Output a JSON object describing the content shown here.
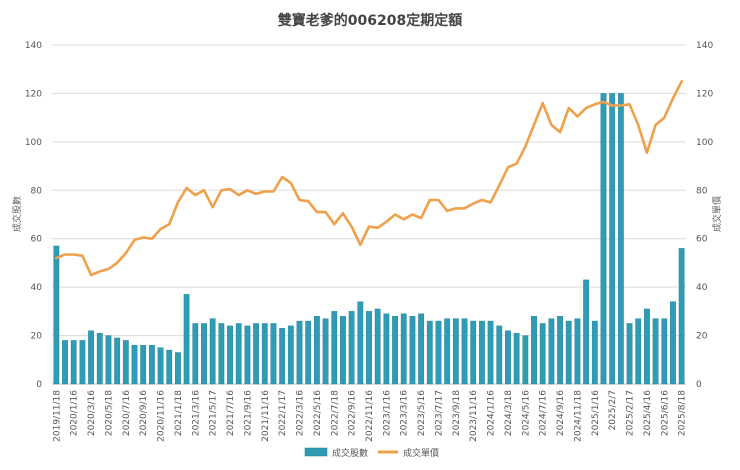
{
  "chart_data": {
    "type": "bar+line",
    "title": "雙寶老爹的006208定期定額",
    "ylabel_left": "成交股數",
    "ylabel_right": "成交單價",
    "ylim": [
      0,
      140
    ],
    "yticks": [
      0,
      20,
      40,
      60,
      80,
      100,
      120,
      140
    ],
    "grid": true,
    "legend_position": "bottom",
    "x_tick_labels": [
      "2019/11/18",
      "2020/1/16",
      "2020/3/16",
      "2020/5/18",
      "2020/7/16",
      "2020/9/16",
      "2020/11/16",
      "2021/1/18",
      "2021/3/16",
      "2021/5/17",
      "2021/7/16",
      "2021/9/16",
      "2021/11/16",
      "2022/1/17",
      "2022/3/16",
      "2022/5/16",
      "2022/7/18",
      "2022/9/16",
      "2022/11/16",
      "2023/1/16",
      "2023/3/16",
      "2023/5/16",
      "2023/7/17",
      "2023/9/18",
      "2023/11/16",
      "2024/1/16",
      "2024/3/18",
      "2024/5/16",
      "2024/7/16",
      "2024/9/16",
      "2024/11/18",
      "2025/1/16",
      "2025/2/7",
      "2025/2/17",
      "2025/4/16",
      "2025/6/16",
      "2025/8/18"
    ],
    "series": [
      {
        "name": "成交股數",
        "kind": "bar",
        "color": "#2f9bb5",
        "values": [
          57,
          18,
          18,
          18,
          22,
          21,
          20,
          19,
          18,
          16,
          16,
          16,
          15,
          14,
          13,
          37,
          25,
          25,
          27,
          25,
          24,
          25,
          24,
          25,
          25,
          25,
          23,
          24,
          26,
          26,
          28,
          27,
          30,
          28,
          30,
          34,
          30,
          31,
          29,
          28,
          29,
          28,
          29,
          26,
          26,
          27,
          27,
          27,
          26,
          26,
          26,
          24,
          22,
          21,
          20,
          28,
          25,
          27,
          28,
          26,
          27,
          43,
          26,
          120,
          120,
          120,
          25,
          27,
          31,
          27,
          27,
          34,
          56
        ]
      },
      {
        "name": "成交單價",
        "kind": "line",
        "color": "#f0a04b",
        "values": [
          52,
          53.5,
          53.5,
          53,
          45,
          46.5,
          47.5,
          50,
          54,
          59.5,
          60.5,
          60,
          64,
          66,
          75,
          81,
          78,
          80,
          73,
          80,
          80.5,
          78,
          80,
          78.5,
          79.5,
          79.5,
          85.5,
          83,
          76,
          75.5,
          71,
          71,
          66,
          70.5,
          65,
          57.5,
          65,
          64.5,
          67,
          70,
          68,
          70,
          68.5,
          76,
          76,
          71.5,
          72.5,
          72.5,
          74.5,
          76,
          75,
          82,
          89.5,
          91,
          98,
          107,
          116,
          107,
          104,
          114,
          110.5,
          114,
          115.5,
          116.5,
          115,
          115,
          115.5,
          107,
          95.5,
          107,
          110,
          118,
          125
        ]
      }
    ]
  }
}
